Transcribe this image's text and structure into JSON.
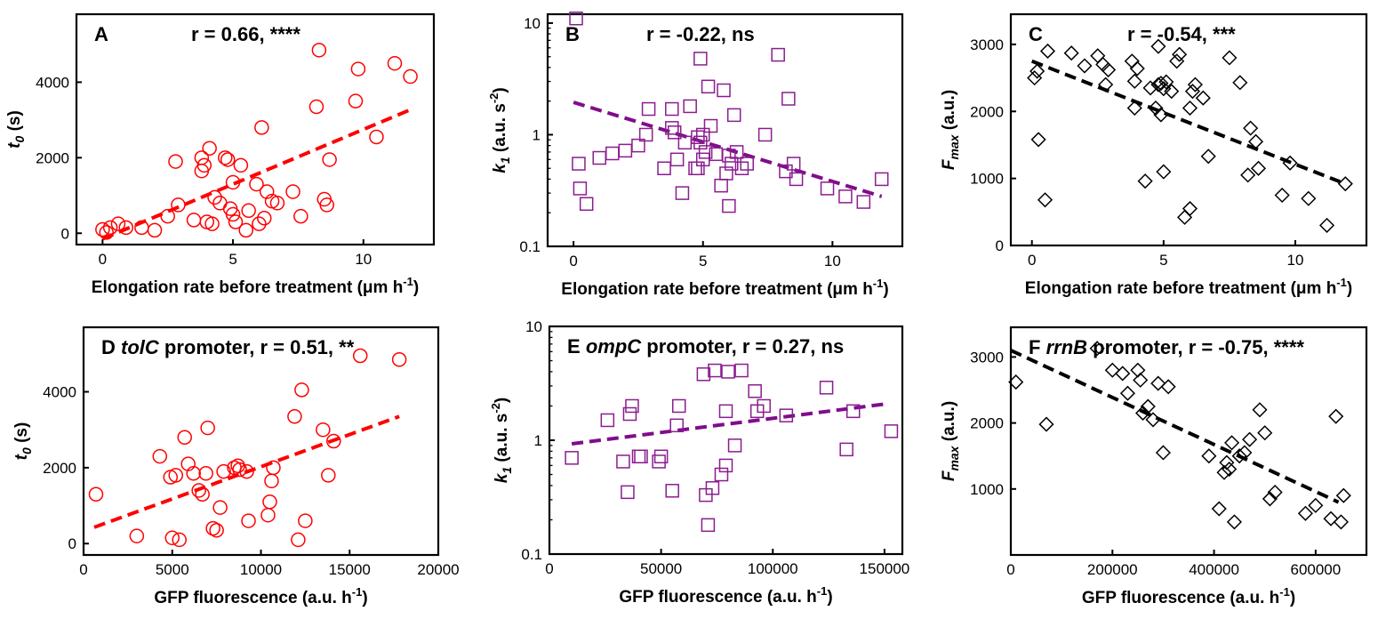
{
  "chart_data": [
    {
      "type": "scatter",
      "panel_label": "A",
      "title_parts": [
        {
          "t": "r = 0.66, ****",
          "i": false
        }
      ],
      "xlabel": "Elongation rate before treatment (μm h",
      "xlabel_sup": "-1",
      "xlabel_end": ")",
      "ylabel_main": "t",
      "ylabel_sub": "0",
      "ylabel_rest": " (s)",
      "xlim": [
        -1,
        12.7
      ],
      "ylim": [
        -300,
        5800
      ],
      "yscale": "linear",
      "xticks": [
        0,
        5,
        10
      ],
      "xtick_labels": [
        "0",
        "5",
        "10"
      ],
      "yticks": [
        0,
        2000,
        4000
      ],
      "ytick_labels": [
        "0",
        "2000",
        "4000"
      ],
      "marker": "circle",
      "color": "#ff0000",
      "fit_color": "#ff0000",
      "fit": {
        "x": [
          0,
          11.9
        ],
        "y": [
          -150,
          3300
        ],
        "kind": "line"
      },
      "x": [
        0,
        0.15,
        0.3,
        0.6,
        0.9,
        1.5,
        2.0,
        2.5,
        2.8,
        2.9,
        3.5,
        3.8,
        3.8,
        3.9,
        4.0,
        4.1,
        4.2,
        4.3,
        4.5,
        4.7,
        4.8,
        4.9,
        5.0,
        5.0,
        5.1,
        5.3,
        5.5,
        5.6,
        5.9,
        6.0,
        6.1,
        6.2,
        6.3,
        6.5,
        6.7,
        7.3,
        7.6,
        8.2,
        8.3,
        8.5,
        8.6,
        8.7,
        9.7,
        9.8,
        10.5,
        11.2,
        11.8
      ],
      "y": [
        100,
        20,
        150,
        250,
        150,
        150,
        80,
        450,
        1900,
        750,
        350,
        1650,
        2000,
        1800,
        300,
        2250,
        250,
        950,
        800,
        2000,
        1950,
        650,
        500,
        1350,
        300,
        1800,
        80,
        600,
        1300,
        250,
        2800,
        400,
        1100,
        850,
        800,
        1100,
        450,
        3350,
        4850,
        900,
        750,
        1950,
        3500,
        4350,
        2550,
        4500,
        4150
      ]
    },
    {
      "type": "scatter",
      "panel_label": "B",
      "title_parts": [
        {
          "t": "r = -0.22, ns",
          "i": false
        }
      ],
      "xlabel": "Elongation rate before treatment (μm h",
      "xlabel_sup": "-1",
      "xlabel_end": ")",
      "ylabel_main": "k",
      "ylabel_sub": "1",
      "ylabel_rest": " (a.u. s",
      "ylabel_sup": "-2",
      "ylabel_end": ")",
      "xlim": [
        -1,
        12.7
      ],
      "ylim": [
        0.1,
        12
      ],
      "yscale": "log",
      "xticks": [
        0,
        5,
        10
      ],
      "xtick_labels": [
        "0",
        "5",
        "10"
      ],
      "yticks": [
        0.1,
        1,
        10
      ],
      "ytick_labels": [
        "0.1",
        "1",
        "10"
      ],
      "marker": "square",
      "color": "#8a1d8f",
      "fit_color": "#800c8c",
      "fit": {
        "x": [
          0,
          11.9
        ],
        "y": [
          1.95,
          0.28
        ],
        "kind": "exp"
      },
      "x": [
        0.1,
        0.2,
        0.25,
        0.5,
        1.0,
        1.5,
        2.0,
        2.5,
        2.8,
        2.9,
        3.5,
        3.8,
        3.8,
        3.9,
        4.0,
        4.2,
        4.3,
        4.5,
        4.7,
        4.8,
        4.8,
        4.9,
        4.9,
        5.0,
        5.0,
        5.1,
        5.2,
        5.3,
        5.5,
        5.7,
        5.8,
        5.9,
        6.0,
        6.0,
        6.1,
        6.2,
        6.3,
        6.5,
        6.7,
        7.4,
        7.9,
        8.2,
        8.3,
        8.5,
        8.6,
        9.8,
        10.5,
        11.2,
        11.9
      ],
      "y": [
        11.0,
        0.55,
        0.33,
        0.24,
        0.62,
        0.68,
        0.72,
        0.8,
        1.0,
        1.7,
        0.5,
        1.15,
        1.7,
        1.05,
        0.6,
        0.3,
        0.85,
        1.8,
        0.5,
        0.95,
        0.5,
        0.85,
        4.8,
        1.0,
        0.6,
        0.7,
        2.7,
        1.2,
        0.67,
        0.35,
        2.5,
        0.45,
        0.65,
        0.23,
        0.55,
        1.5,
        0.7,
        0.5,
        0.55,
        1.0,
        5.2,
        0.47,
        2.1,
        0.55,
        0.4,
        0.33,
        0.28,
        0.25,
        0.4
      ]
    },
    {
      "type": "scatter",
      "panel_label": "C",
      "title_parts": [
        {
          "t": "r = -0.54, ***",
          "i": false
        }
      ],
      "xlabel": "Elongation rate before treatment (μm h",
      "xlabel_sup": "-1",
      "xlabel_end": ")",
      "ylabel_main": "F",
      "ylabel_sub": "max",
      "ylabel_rest": " (a.u.)",
      "xlim": [
        -0.8,
        12.7
      ],
      "ylim": [
        0,
        3450
      ],
      "yscale": "linear",
      "xticks": [
        0,
        5,
        10
      ],
      "xtick_labels": [
        "0",
        "5",
        "10"
      ],
      "yticks": [
        0,
        1000,
        2000,
        3000
      ],
      "ytick_labels": [
        "0",
        "1000",
        "2000",
        "3000"
      ],
      "marker": "diamond",
      "color": "#000000",
      "fit_color": "#000000",
      "fit": {
        "x": [
          0,
          11.7
        ],
        "y": [
          2750,
          950
        ],
        "kind": "line"
      },
      "x": [
        0.1,
        0.2,
        0.25,
        0.5,
        0.6,
        1.5,
        2.0,
        2.5,
        2.7,
        2.8,
        2.9,
        3.8,
        3.9,
        3.9,
        4.0,
        4.3,
        4.5,
        4.7,
        4.8,
        4.8,
        4.9,
        4.9,
        5.0,
        5.0,
        5.1,
        5.3,
        5.5,
        5.6,
        5.8,
        6.0,
        6.0,
        6.1,
        6.2,
        6.5,
        6.7,
        7.5,
        7.9,
        8.2,
        8.3,
        8.5,
        8.6,
        9.5,
        9.8,
        10.5,
        11.2,
        11.9
      ],
      "y": [
        2500,
        2600,
        1580,
        680,
        2900,
        2870,
        2680,
        2830,
        2700,
        2400,
        2620,
        2750,
        2450,
        2050,
        2640,
        960,
        2350,
        2050,
        2400,
        2970,
        1950,
        2420,
        1100,
        2340,
        2440,
        2300,
        2750,
        2850,
        420,
        550,
        2050,
        2300,
        2400,
        2200,
        1330,
        2800,
        2430,
        1050,
        1750,
        1550,
        1150,
        750,
        1230,
        700,
        300,
        920
      ]
    },
    {
      "type": "scatter",
      "panel_label": "D",
      "title_parts": [
        {
          "t": "tolC",
          "i": true
        },
        {
          "t": " promoter, r = 0.51, **",
          "i": false
        }
      ],
      "xlabel": "GFP fluorescence (a.u. h",
      "xlabel_sup": "-1",
      "xlabel_end": ")",
      "ylabel_main": "t",
      "ylabel_sub": "0",
      "ylabel_rest": " (s)",
      "xlim": [
        0,
        20000
      ],
      "ylim": [
        -300,
        5700
      ],
      "yscale": "linear",
      "xticks": [
        0,
        5000,
        10000,
        15000,
        20000
      ],
      "xtick_labels": [
        "0",
        "5000",
        "10000",
        "15000",
        "20000"
      ],
      "yticks": [
        0,
        2000,
        4000
      ],
      "ytick_labels": [
        "0",
        "2000",
        "4000"
      ],
      "marker": "circle",
      "color": "#ff0000",
      "fit_color": "#ff0000",
      "fit": {
        "x": [
          600,
          17800
        ],
        "y": [
          430,
          3350
        ],
        "kind": "line"
      },
      "x": [
        700,
        3000,
        4300,
        4900,
        5000,
        5200,
        5400,
        5700,
        5900,
        6200,
        6500,
        6700,
        6900,
        7000,
        7300,
        7500,
        7700,
        7900,
        8500,
        8700,
        8800,
        9200,
        9300,
        10400,
        10500,
        10600,
        10700,
        11900,
        12100,
        12300,
        12500,
        13500,
        13800,
        14100,
        15600,
        17800
      ],
      "y": [
        1300,
        200,
        2300,
        1750,
        150,
        1800,
        100,
        2800,
        2100,
        1850,
        1400,
        1300,
        1850,
        3050,
        400,
        350,
        950,
        1900,
        2000,
        2050,
        1950,
        1900,
        600,
        750,
        1100,
        1650,
        2000,
        3350,
        100,
        4050,
        600,
        3000,
        1800,
        2700,
        4950,
        4850
      ]
    },
    {
      "type": "scatter",
      "panel_label": "E",
      "title_parts": [
        {
          "t": "ompC",
          "i": true
        },
        {
          "t": " promoter, r = 0.27, ns",
          "i": false
        }
      ],
      "xlabel": "GFP fluorescence (a.u. h",
      "xlabel_sup": "-1",
      "xlabel_end": ")",
      "ylabel_main": "k",
      "ylabel_sub": "1",
      "ylabel_rest": " (a.u. s",
      "ylabel_sup": "-2",
      "ylabel_end": ")",
      "xlim": [
        0,
        158000
      ],
      "ylim": [
        0.1,
        10
      ],
      "yscale": "log",
      "xticks": [
        0,
        50000,
        100000,
        150000
      ],
      "xtick_labels": [
        "0",
        "50000",
        "100000",
        "150000"
      ],
      "yticks": [
        0.1,
        1,
        10
      ],
      "ytick_labels": [
        "0.1",
        "1",
        "10"
      ],
      "marker": "square",
      "color": "#8a1d8f",
      "fit_color": "#800c8c",
      "fit": {
        "x": [
          10000,
          152000
        ],
        "y": [
          0.93,
          2.1
        ],
        "kind": "exp"
      },
      "x": [
        10000,
        26000,
        33000,
        35000,
        36000,
        37000,
        40000,
        41000,
        49000,
        50000,
        55000,
        57000,
        58000,
        69000,
        70000,
        71000,
        73000,
        74000,
        77000,
        79000,
        79000,
        80000,
        83000,
        86000,
        92000,
        93000,
        96000,
        106000,
        124000,
        133000,
        136000,
        153000
      ],
      "y": [
        0.7,
        1.5,
        0.65,
        0.35,
        1.7,
        2.0,
        0.72,
        0.72,
        0.65,
        0.72,
        0.36,
        1.35,
        2.0,
        3.8,
        0.33,
        0.18,
        0.38,
        4.1,
        0.5,
        0.6,
        1.8,
        4.0,
        0.9,
        4.1,
        2.7,
        1.8,
        2.0,
        1.65,
        2.9,
        0.83,
        1.8,
        1.2
      ]
    },
    {
      "type": "scatter",
      "panel_label": "F",
      "title_parts": [
        {
          "t": "rrnB",
          "i": true
        },
        {
          "t": " promoter, r = -0.75, ****",
          "i": false
        }
      ],
      "xlabel": "GFP fluorescence (a.u. h",
      "xlabel_sup": "-1",
      "xlabel_end": ")",
      "ylabel_main": "F",
      "ylabel_sub": "max",
      "ylabel_rest": " (a.u.)",
      "xlim": [
        0,
        700000
      ],
      "ylim": [
        0,
        3450
      ],
      "yscale": "linear",
      "xticks": [
        0,
        200000,
        400000,
        600000
      ],
      "xtick_labels": [
        "0",
        "200000",
        "400000",
        "600000"
      ],
      "yticks": [
        1000,
        2000,
        3000
      ],
      "ytick_labels": [
        "1000",
        "2000",
        "3000"
      ],
      "marker": "diamond",
      "color": "#000000",
      "fit_color": "#000000",
      "fit": {
        "x": [
          0,
          645000
        ],
        "y": [
          3100,
          800
        ],
        "kind": "line"
      },
      "x": [
        10000,
        70000,
        170000,
        200000,
        220000,
        230000,
        250000,
        255000,
        260000,
        270000,
        280000,
        290000,
        300000,
        310000,
        390000,
        410000,
        420000,
        425000,
        430000,
        435000,
        440000,
        450000,
        460000,
        470000,
        490000,
        500000,
        510000,
        520000,
        580000,
        600000,
        630000,
        640000,
        650000,
        655000
      ],
      "y": [
        2620,
        1980,
        3130,
        2800,
        2750,
        2450,
        2800,
        2650,
        2150,
        2250,
        2050,
        2600,
        1550,
        2550,
        1500,
        700,
        1250,
        1400,
        1300,
        1700,
        500,
        1500,
        1550,
        1750,
        2200,
        1850,
        850,
        950,
        630,
        750,
        550,
        2100,
        500,
        900
      ]
    }
  ]
}
